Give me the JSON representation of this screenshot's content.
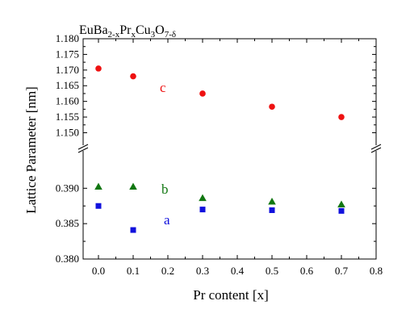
{
  "chart_data": {
    "type": "scatter",
    "title": {
      "parts": [
        {
          "text": "EuBa",
          "sub": false
        },
        {
          "text": "2-x",
          "sub": true
        },
        {
          "text": "Pr",
          "sub": false
        },
        {
          "text": "x",
          "sub": true
        },
        {
          "text": "Cu",
          "sub": false
        },
        {
          "text": "3",
          "sub": true
        },
        {
          "text": "O",
          "sub": false
        },
        {
          "text": "7-δ",
          "sub": true
        }
      ]
    },
    "xlabel": "Pr content [x]",
    "ylabel": "Lattice Parameter [nm]",
    "xlim": [
      -0.05,
      0.8
    ],
    "x_ticks": [
      "0.0",
      "0.1",
      "0.2",
      "0.3",
      "0.4",
      "0.5",
      "0.6",
      "0.7",
      "0.8"
    ],
    "y_axis_break": true,
    "y_lower_range": [
      0.38,
      0.393
    ],
    "y_lower_ticks": [
      "0.380",
      "0.385",
      "0.390"
    ],
    "y_upper_range": [
      1.146,
      1.18
    ],
    "y_upper_ticks": [
      "1.150",
      "1.155",
      "1.160",
      "1.165",
      "1.170",
      "1.175",
      "1.180"
    ],
    "grid": false,
    "legend": "none",
    "series": [
      {
        "name": "c",
        "panel": "upper",
        "marker": "circle",
        "color": "#ee1111",
        "x": [
          0.0,
          0.1,
          0.3,
          0.5,
          0.7
        ],
        "y": [
          1.1705,
          1.168,
          1.1625,
          1.1583,
          1.155
        ]
      },
      {
        "name": "b",
        "panel": "lower",
        "marker": "triangle",
        "color": "#117711",
        "x": [
          0.0,
          0.1,
          0.3,
          0.5,
          0.7
        ],
        "y": [
          0.3902,
          0.3902,
          0.3886,
          0.3881,
          0.3877
        ]
      },
      {
        "name": "a",
        "panel": "lower",
        "marker": "square",
        "color": "#1111dd",
        "x": [
          0.0,
          0.1,
          0.3,
          0.5,
          0.7
        ],
        "y": [
          0.3875,
          0.3841,
          0.387,
          0.3869,
          0.3868
        ]
      }
    ]
  }
}
